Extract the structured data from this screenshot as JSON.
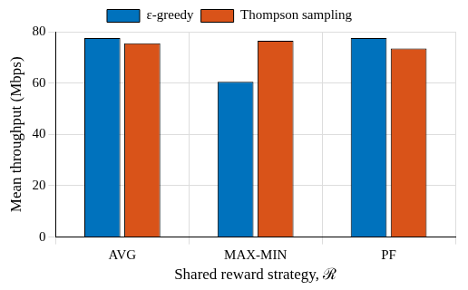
{
  "chart_data": {
    "type": "bar",
    "categories": [
      "AVG",
      "MAX-MIN",
      "PF"
    ],
    "series": [
      {
        "name": "ε-greedy",
        "color": "#0072bd",
        "values": [
          77.5,
          60.5,
          77.5
        ]
      },
      {
        "name": "Thompson sampling",
        "color": "#d95319",
        "values": [
          75.5,
          76.5,
          73.5
        ]
      }
    ],
    "x_label": "Shared reward strategy, ℛ",
    "y_label": "Mean throughput (Mbps)",
    "ylim": [
      0,
      80
    ],
    "yticks": [
      0,
      20,
      40,
      60,
      80
    ],
    "grid": true,
    "legend": "top"
  }
}
